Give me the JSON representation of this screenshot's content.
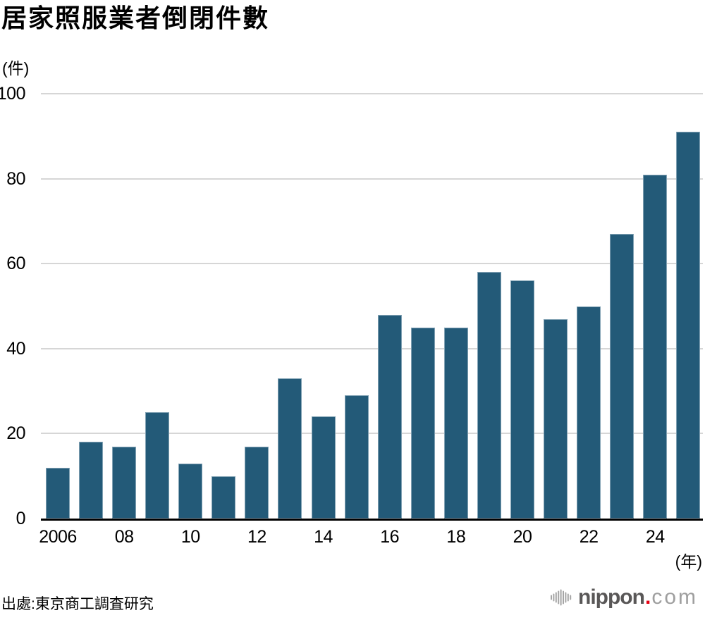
{
  "title": "居家照服業者倒閉件數",
  "y_unit_label": "(件)",
  "x_unit_label": "(年)",
  "source": "出處:東京商工調査研究",
  "logo": {
    "name": "nippon",
    "dot": ".",
    "tld": "com"
  },
  "colors": {
    "bar": "#235a78",
    "gridline": "#d6d6d6",
    "axis": "#000000",
    "text": "#000000",
    "logo_name": "#595757",
    "logo_dot": "#e60012",
    "logo_tld": "#9f9f9f",
    "logo_icon": "#a5a5a5"
  },
  "chart_data": {
    "type": "bar",
    "title": "居家照服業者倒閉件數",
    "xlabel": "(年)",
    "ylabel": "(件)",
    "categories": [
      2006,
      2007,
      2008,
      2009,
      2010,
      2011,
      2012,
      2013,
      2014,
      2015,
      2016,
      2017,
      2018,
      2019,
      2020,
      2021,
      2022,
      2023,
      2024,
      2025
    ],
    "values": [
      12,
      18,
      17,
      25,
      13,
      10,
      17,
      33,
      24,
      29,
      48,
      45,
      45,
      58,
      56,
      47,
      50,
      67,
      81,
      91
    ],
    "x_tick_labels": [
      "2006",
      "08",
      "10",
      "12",
      "14",
      "16",
      "18",
      "20",
      "22",
      "24"
    ],
    "x_tick_every": 2,
    "y_ticks": [
      0,
      20,
      40,
      60,
      80,
      100
    ],
    "ylim": [
      0,
      100
    ],
    "grid": true,
    "legend": false
  }
}
